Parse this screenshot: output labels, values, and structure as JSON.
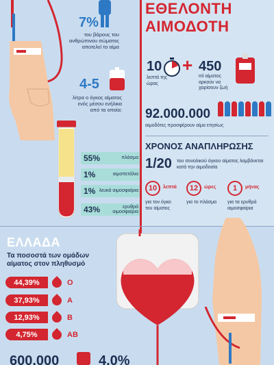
{
  "title": {
    "line1": "ΕΘΕΛΟΝΤΗ",
    "line2": "ΑΙΜΟΔΟΤΗ"
  },
  "weight": {
    "pct": "7%",
    "text": "του βάρους του ανθρώπινου σώματος αποτελεί το αίμα"
  },
  "volume": {
    "value": "4-5",
    "text": "λίτρα ο όγκος αίματος ενός μέσου ενήλικα από τα οποία:"
  },
  "components": [
    {
      "pct": "55%",
      "label": "πλάσμα"
    },
    {
      "pct": "1%",
      "label": "αιμοπετάλια"
    },
    {
      "pct": "1%",
      "label": "λευκά αιμοσφαίρια"
    },
    {
      "pct": "43%",
      "label": "ερυθρά αιμοσφαίρια"
    }
  ],
  "donation": {
    "minutes": "10",
    "minutes_label": "λεπτά της ώρας",
    "plus": "+",
    "ml": "450",
    "ml_label": "ml αίματος αρκούν να χαρίσουν ζωή"
  },
  "donors": {
    "value": "92.000.000",
    "text": "αιμοδότες προσφέρουν αίμα ετησίως"
  },
  "recovery": {
    "heading": "ΧΡΟΝΟΣ ΑΝΑΠΛΗΡΩΣΗΣ",
    "fraction": "1/20",
    "fraction_text": "του συνολικού όγκου αίματος λαμβάνεται κατά την αιμοδοσία",
    "items": [
      {
        "num": "10",
        "unit": "λεπτά",
        "text": "για τον όγκο του αίματος"
      },
      {
        "num": "12",
        "unit": "ώρες",
        "text": "για το πλάσμα"
      },
      {
        "num": "1",
        "unit": "μήνας",
        "text": "για τα ερυθρά αιμοσφαίρια"
      }
    ]
  },
  "greece": {
    "heading": "ΕΛΛΑΔΑ",
    "subheading": "Τα ποσοστά των ομάδων αίματος στον πληθυσμό",
    "groups": [
      {
        "pct": "44,39%",
        "type": "O"
      },
      {
        "pct": "37,93%",
        "type": "A"
      },
      {
        "pct": "12,93%",
        "type": "B"
      },
      {
        "pct": "4,75%",
        "type": "AB"
      }
    ]
  },
  "bottom": {
    "value1": "600.000",
    "value2": "4,0%"
  },
  "colors": {
    "red": "#d32630",
    "navy": "#1c2f52",
    "blue": "#2e79c4",
    "bg": "#c9dcef",
    "mint": "#a9ddd9"
  }
}
